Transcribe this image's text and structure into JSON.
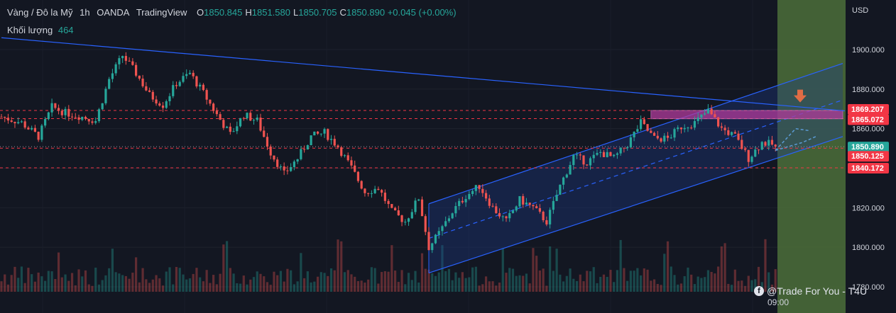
{
  "header": {
    "symbol": "Vàng / Đô la Mỹ",
    "interval": "1h",
    "broker": "OANDA",
    "platform": "TradingView",
    "ohlc": [
      {
        "k": "O",
        "v": "1850.845"
      },
      {
        "k": "H",
        "v": "1851.580"
      },
      {
        "k": "L",
        "v": "1850.705"
      },
      {
        "k": "C",
        "v": "1850.890"
      }
    ],
    "change": "+0.045 (+0.00%)"
  },
  "volume": {
    "label": "Khối lượng",
    "value": "464"
  },
  "watermark": "@Trade For You - T4U",
  "time_label": "09:00",
  "colors": {
    "background": "#131722",
    "up": "#26a69a",
    "down": "#ef5350",
    "trendline": "#2962ff",
    "channel_fill": "#1e3a8a",
    "level_line": "#f23645",
    "zone": "#b03a9a",
    "target_box": "#4c6f3a",
    "arrow": "#e06c45",
    "path": "#5b9bd5"
  },
  "chart_data": {
    "type": "candlestick",
    "title": "",
    "xlabel": "",
    "ylabel": "USD",
    "ylim": [
      1775,
      1912
    ],
    "y_ticks": [
      1780,
      1800,
      1820,
      1840,
      1860,
      1880,
      1900
    ],
    "y_tick_labels": [
      "1780.000",
      "1800.000",
      "1820.000",
      "1840.000",
      "1860.000",
      "1880.000",
      "1900.000"
    ],
    "x_ticks": [
      "09:00"
    ],
    "bars_shown": 200,
    "close_path": [
      [
        0,
        1866
      ],
      [
        6,
        1863
      ],
      [
        11,
        1856
      ],
      [
        15,
        1871
      ],
      [
        19,
        1868
      ],
      [
        24,
        1866
      ],
      [
        28,
        1864
      ],
      [
        32,
        1885
      ],
      [
        36,
        1897
      ],
      [
        40,
        1888
      ],
      [
        44,
        1877
      ],
      [
        48,
        1872
      ],
      [
        52,
        1883
      ],
      [
        56,
        1888
      ],
      [
        60,
        1878
      ],
      [
        64,
        1867
      ],
      [
        68,
        1857
      ],
      [
        72,
        1867
      ],
      [
        76,
        1864
      ],
      [
        80,
        1848
      ],
      [
        84,
        1837
      ],
      [
        88,
        1845
      ],
      [
        92,
        1856
      ],
      [
        96,
        1858
      ],
      [
        100,
        1851
      ],
      [
        104,
        1840
      ],
      [
        108,
        1828
      ],
      [
        112,
        1830
      ],
      [
        116,
        1818
      ],
      [
        120,
        1813
      ],
      [
        124,
        1825
      ],
      [
        127,
        1800
      ],
      [
        130,
        1807
      ],
      [
        134,
        1818
      ],
      [
        138,
        1826
      ],
      [
        142,
        1831
      ],
      [
        146,
        1820
      ],
      [
        150,
        1813
      ],
      [
        154,
        1824
      ],
      [
        158,
        1820
      ],
      [
        162,
        1813
      ],
      [
        166,
        1831
      ],
      [
        170,
        1846
      ],
      [
        174,
        1843
      ],
      [
        178,
        1848
      ],
      [
        182,
        1845
      ],
      [
        186,
        1852
      ],
      [
        190,
        1863
      ],
      [
        194,
        1855
      ],
      [
        198,
        1855
      ],
      [
        202,
        1861
      ],
      [
        206,
        1863
      ],
      [
        210,
        1869
      ],
      [
        214,
        1860
      ],
      [
        218,
        1856
      ],
      [
        222,
        1845
      ],
      [
        226,
        1853
      ],
      [
        229,
        1852
      ],
      [
        230,
        1850.89
      ]
    ],
    "price_labels": [
      {
        "value": 1869.207,
        "text": "1869.207",
        "color": "#f23645",
        "dashed": true
      },
      {
        "value": 1865.072,
        "text": "1865.072",
        "color": "#f23645",
        "dashed": true
      },
      {
        "value": 1850.89,
        "text": "1850.890",
        "color": "#26a69a",
        "dashed": false
      },
      {
        "value": 1850.125,
        "text": "1850.125",
        "color": "#f23645",
        "dashed": true
      },
      {
        "value": 1840.172,
        "text": "1840.172",
        "color": "#f23645",
        "dashed": true
      }
    ],
    "trendline": {
      "from": [
        0,
        1906
      ],
      "to": [
        250,
        1869
      ]
    },
    "channel": {
      "lower": {
        "from": [
          127,
          1787
        ],
        "to": [
          250,
          1856
        ]
      },
      "upper": {
        "from": [
          127,
          1822
        ],
        "to": [
          250,
          1893
        ]
      },
      "start_bar": 127,
      "end_bar": 250
    },
    "resistance_zone": {
      "from_bar": 193,
      "to_bar": 250,
      "top": 1869.2,
      "bottom": 1865.0
    },
    "target_box": {
      "from_bar": 233,
      "to_bar": 252,
      "top": 1912,
      "bottom": 1775
    },
    "projected_path": [
      [
        230,
        1849
      ],
      [
        238,
        1853
      ],
      [
        242,
        1856
      ]
    ],
    "projected_path2": [
      [
        230,
        1849
      ],
      [
        236,
        1860
      ],
      [
        240,
        1859
      ]
    ]
  }
}
